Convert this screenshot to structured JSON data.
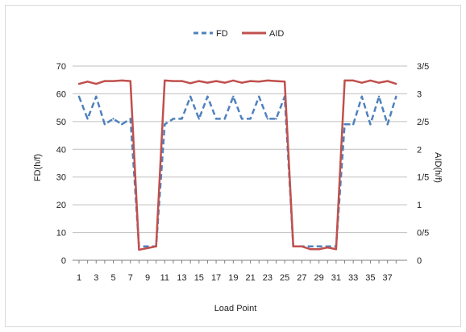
{
  "chart_data": {
    "type": "line",
    "x": [
      1,
      2,
      3,
      4,
      5,
      6,
      7,
      8,
      9,
      10,
      11,
      12,
      13,
      14,
      15,
      16,
      17,
      18,
      19,
      20,
      21,
      22,
      23,
      24,
      25,
      26,
      27,
      28,
      29,
      30,
      31,
      32,
      33,
      34,
      35,
      36,
      37,
      38
    ],
    "x_tick_labels": [
      "1",
      "3",
      "5",
      "7",
      "9",
      "11",
      "13",
      "15",
      "17",
      "19",
      "21",
      "23",
      "25",
      "27",
      "29",
      "31",
      "33",
      "35",
      "37"
    ],
    "xlabel": "Load Point",
    "ylabel": "FD(h/f)",
    "ylabel_right": "AID(h/f)",
    "ylim": [
      0,
      70
    ],
    "ylim_right": [
      0,
      3.5
    ],
    "y_tick_labels": [
      "0",
      "10",
      "20",
      "30",
      "40",
      "50",
      "60",
      "70"
    ],
    "y_right_tick_labels": [
      "0",
      "0/5",
      "1",
      "1/5",
      "2",
      "2/5",
      "3",
      "3/5"
    ],
    "grid": true,
    "legend_position": "top-center",
    "series": [
      {
        "name": "FD",
        "axis": "left",
        "style": "dashed",
        "color": "#4f81bd",
        "values": [
          59,
          51,
          59,
          49,
          51,
          49,
          51,
          5,
          5,
          5,
          49,
          51,
          51,
          59,
          51,
          59,
          51,
          51,
          59,
          51,
          51,
          59,
          51,
          51,
          59,
          5,
          5,
          5,
          5,
          5,
          5,
          49,
          49,
          59,
          49,
          59,
          49,
          59
        ]
      },
      {
        "name": "AID",
        "axis": "right",
        "style": "solid",
        "color": "#c0504d",
        "values": [
          3.18,
          3.22,
          3.18,
          3.23,
          3.23,
          3.24,
          3.23,
          0.19,
          0.22,
          0.25,
          3.24,
          3.23,
          3.23,
          3.19,
          3.23,
          3.2,
          3.23,
          3.2,
          3.24,
          3.2,
          3.23,
          3.22,
          3.24,
          3.23,
          3.22,
          0.25,
          0.25,
          0.2,
          0.2,
          0.23,
          0.2,
          3.24,
          3.24,
          3.2,
          3.24,
          3.2,
          3.23,
          3.18
        ]
      }
    ]
  }
}
